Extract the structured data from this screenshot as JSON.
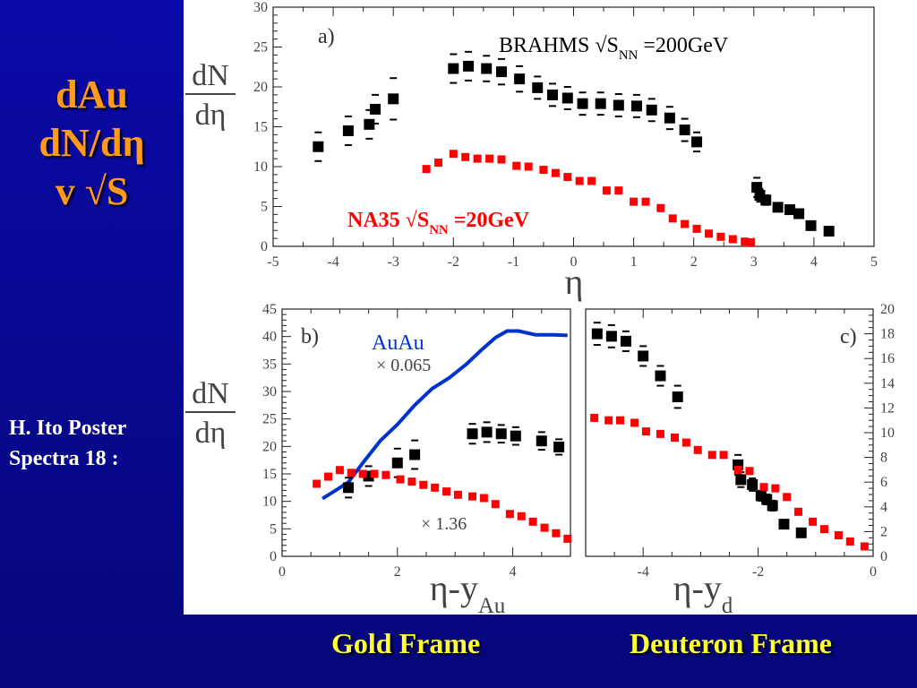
{
  "slide": {
    "title_lines": [
      "dAu",
      "dN/dη",
      "v √S"
    ],
    "note_lines": [
      "H. Ito Poster",
      "Spectra 18 :"
    ],
    "frame_labels": [
      "Gold Frame",
      "Deuteron Frame"
    ],
    "colors": {
      "background": "#0a0aa8",
      "title": "#ff9a1a",
      "frame_label": "#ffff33",
      "brahms": "#000000",
      "na35": "#ff0000",
      "auau": "#0033cc"
    }
  },
  "chart_data": [
    {
      "type": "scatter",
      "panel_label": "a)",
      "xlabel": "η",
      "ylabel_num": "dN",
      "ylabel_den": "dη",
      "xlim": [
        -5,
        5
      ],
      "ylim": [
        0,
        30
      ],
      "xticks": [
        -5,
        -4,
        -3,
        -2,
        -1,
        0,
        1,
        2,
        3,
        4,
        5
      ],
      "yticks": [
        0,
        5,
        10,
        15,
        20,
        25,
        30
      ],
      "annotations": [
        {
          "main": "BRAHMS √S",
          "sub": "NN",
          "tail": " =200GeV"
        },
        {
          "main": "NA35 √S",
          "sub": "NN",
          "tail": " =20GeV"
        }
      ],
      "series": [
        {
          "marker": "square-errorbar",
          "color": "#000000",
          "x": [
            -4.25,
            -3.75,
            -3.4,
            -3.3,
            -3.0,
            -2.0,
            -1.75,
            -1.45,
            -1.2,
            -0.9,
            -0.6,
            -0.35,
            -0.1,
            0.15,
            0.45,
            0.75,
            1.05,
            1.3,
            1.6,
            1.85,
            2.05,
            3.05,
            3.1,
            3.2,
            3.4,
            3.6,
            3.75,
            3.95,
            4.25
          ],
          "y": [
            12.5,
            14.5,
            15.3,
            17.2,
            18.5,
            22.3,
            22.6,
            22.3,
            21.9,
            21.0,
            19.9,
            19.0,
            18.6,
            17.9,
            17.9,
            17.7,
            17.6,
            17.1,
            16.1,
            14.6,
            13.1,
            7.4,
            6.4,
            5.8,
            4.9,
            4.6,
            4.1,
            2.6,
            1.9
          ],
          "err": [
            1.8,
            1.8,
            1.8,
            1.8,
            2.6,
            1.8,
            1.8,
            1.6,
            1.6,
            1.6,
            1.4,
            1.4,
            1.4,
            1.4,
            1.4,
            1.4,
            1.4,
            1.4,
            1.4,
            1.4,
            1.2,
            1.2,
            0.8,
            0.6,
            0.5,
            0.4,
            0.4,
            0.3,
            0.3
          ]
        },
        {
          "marker": "square",
          "color": "#ff0000",
          "x": [
            -2.45,
            -2.25,
            -2.0,
            -1.8,
            -1.6,
            -1.4,
            -1.2,
            -0.95,
            -0.75,
            -0.5,
            -0.3,
            -0.1,
            0.1,
            0.3,
            0.55,
            0.75,
            1.0,
            1.2,
            1.45,
            1.65,
            1.85,
            2.05,
            2.25,
            2.45,
            2.65,
            2.85,
            2.95
          ],
          "y": [
            9.7,
            10.5,
            11.6,
            11.2,
            11.0,
            11.0,
            10.9,
            10.1,
            10.0,
            9.6,
            9.2,
            8.7,
            8.2,
            8.2,
            7.0,
            7.0,
            5.6,
            5.6,
            4.8,
            3.5,
            2.8,
            2.2,
            1.6,
            1.2,
            0.9,
            0.6,
            0.5
          ]
        }
      ]
    },
    {
      "type": "scatter",
      "panel_label": "b)",
      "xlabel_main": "η-y",
      "xlabel_sub": "Au",
      "ylabel_num": "dN",
      "ylabel_den": "dη",
      "xlim": [
        0,
        5
      ],
      "ylim": [
        0,
        45
      ],
      "xticks": [
        0,
        2,
        4
      ],
      "yticks": [
        0,
        5,
        10,
        15,
        20,
        25,
        30,
        35,
        40,
        45
      ],
      "annotations": [
        {
          "text": "AuAu"
        },
        {
          "text": "× 0.065"
        },
        {
          "text": "× 1.36"
        }
      ],
      "series": [
        {
          "name": "AuAu",
          "marker": "line",
          "color": "#0033cc",
          "x": [
            0.7,
            0.9,
            1.15,
            1.4,
            1.7,
            2.0,
            2.3,
            2.6,
            2.9,
            3.2,
            3.45,
            3.7,
            3.9,
            4.1,
            4.4,
            4.7,
            4.95
          ],
          "y": [
            10.5,
            11.8,
            13.5,
            17.0,
            21.0,
            24.0,
            27.5,
            30.5,
            32.5,
            35.0,
            37.5,
            39.8,
            41.0,
            41.0,
            40.3,
            40.3,
            40.2
          ]
        },
        {
          "marker": "square-errorbar",
          "color": "#000000",
          "x": [
            1.15,
            1.5,
            2.0,
            2.3,
            3.3,
            3.55,
            3.8,
            4.05,
            4.5,
            4.8
          ],
          "y": [
            12.5,
            14.6,
            17.0,
            18.5,
            22.3,
            22.6,
            22.3,
            21.9,
            21.0,
            19.9
          ],
          "err": [
            1.8,
            1.8,
            2.6,
            2.6,
            1.8,
            1.8,
            1.6,
            1.6,
            1.6,
            1.4
          ]
        },
        {
          "marker": "square",
          "color": "#ff0000",
          "x": [
            0.6,
            0.8,
            1.0,
            1.2,
            1.4,
            1.6,
            1.8,
            2.05,
            2.25,
            2.45,
            2.65,
            2.85,
            3.05,
            3.3,
            3.5,
            3.7,
            3.95,
            4.15,
            4.35,
            4.55,
            4.75,
            4.95
          ],
          "y": [
            13.2,
            14.5,
            15.7,
            15.2,
            15.0,
            15.0,
            14.8,
            14.0,
            13.6,
            13.0,
            12.5,
            11.8,
            11.2,
            10.9,
            10.6,
            9.5,
            7.7,
            7.3,
            6.3,
            5.2,
            4.2,
            3.2
          ]
        }
      ]
    },
    {
      "type": "scatter",
      "panel_label": "c)",
      "xlabel_main": "η-y",
      "xlabel_sub": "d",
      "xlim": [
        -5,
        0
      ],
      "ylim": [
        0,
        20
      ],
      "xticks": [
        -4,
        -2,
        0
      ],
      "yticks": [
        0,
        2,
        4,
        6,
        8,
        10,
        12,
        14,
        16,
        18,
        20
      ],
      "series": [
        {
          "marker": "square-errorbar",
          "color": "#000000",
          "x": [
            -4.8,
            -4.55,
            -4.3,
            -4.0,
            -3.7,
            -3.4,
            -2.35,
            -2.3,
            -2.1,
            -1.95,
            -1.85,
            -1.75,
            -1.55,
            -1.25
          ],
          "y": [
            18.0,
            17.8,
            17.4,
            16.2,
            14.6,
            12.9,
            7.4,
            6.2,
            5.8,
            4.9,
            4.6,
            4.1,
            2.6,
            1.9
          ],
          "err": [
            0.9,
            0.9,
            0.8,
            0.8,
            0.8,
            0.9,
            0.8,
            0.6,
            0.5,
            0.4,
            0.4,
            0.4,
            0.3,
            0.3
          ]
        },
        {
          "marker": "square",
          "color": "#ff0000",
          "x": [
            -4.85,
            -4.6,
            -4.4,
            -4.15,
            -3.95,
            -3.7,
            -3.45,
            -3.25,
            -3.05,
            -2.8,
            -2.6,
            -2.35,
            -2.15,
            -1.9,
            -1.7,
            -1.5,
            -1.3,
            -1.05,
            -0.85,
            -0.6,
            -0.4,
            -0.15
          ],
          "y": [
            11.2,
            11.0,
            11.0,
            10.8,
            10.1,
            9.9,
            9.6,
            9.2,
            8.6,
            8.2,
            8.2,
            7.0,
            6.9,
            5.6,
            5.5,
            4.8,
            3.6,
            2.8,
            2.2,
            1.7,
            1.2,
            0.8
          ]
        }
      ]
    }
  ]
}
